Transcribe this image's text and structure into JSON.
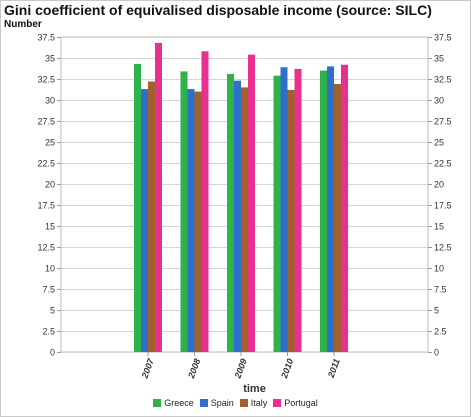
{
  "header": {
    "title": "Gini coefficient of equivalised disposable income (source: SILC)",
    "unit": "Number"
  },
  "chart_data": {
    "type": "bar",
    "title": "Gini coefficient of equivalised disposable income (source: SILC)",
    "ylabel": "Number",
    "xlabel": "time",
    "categories": [
      "2007",
      "2008",
      "2009",
      "2010",
      "2011"
    ],
    "ylim": [
      0,
      37.5
    ],
    "yticks": [
      "0",
      "2.5",
      "5",
      "7.5",
      "10",
      "12.5",
      "15",
      "17.5",
      "20",
      "22.5",
      "25",
      "27.5",
      "30",
      "32.5",
      "35",
      "37.5"
    ],
    "grid": true,
    "legend_position": "bottom",
    "series": [
      {
        "name": "Greece",
        "color": "#2db34a",
        "values": [
          34.3,
          33.4,
          33.1,
          32.9,
          33.5
        ]
      },
      {
        "name": "Spain",
        "color": "#2f6fc9",
        "values": [
          31.3,
          31.3,
          32.3,
          33.9,
          34.0
        ]
      },
      {
        "name": "Italy",
        "color": "#a0612c",
        "values": [
          32.2,
          31.0,
          31.5,
          31.2,
          31.9
        ]
      },
      {
        "name": "Portugal",
        "color": "#e8318f",
        "values": [
          36.8,
          35.8,
          35.4,
          33.7,
          34.2
        ]
      }
    ]
  }
}
